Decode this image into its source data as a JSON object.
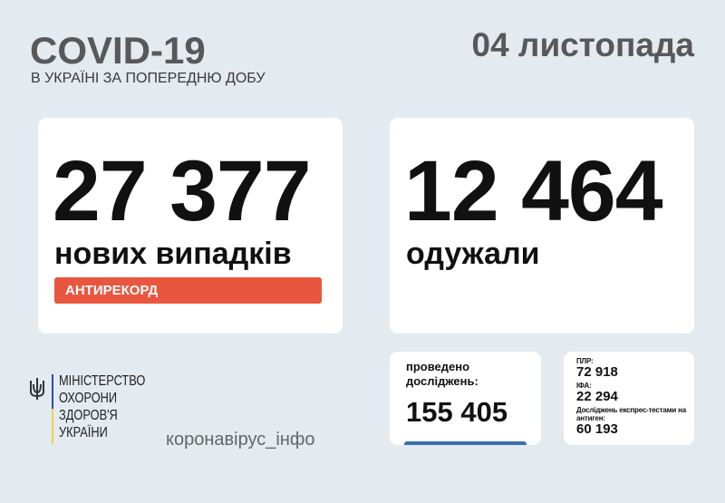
{
  "header": {
    "title": "COVID-19",
    "subtitle": "В УКРАЇНІ ЗА ПОПЕРЕДНЮ ДОБУ",
    "date": "04 листопада"
  },
  "cases": {
    "value": "27 377",
    "label": "нових випадків",
    "badge": "АНТИРЕКОРД"
  },
  "recovered": {
    "value": "12 464",
    "label": "одужали"
  },
  "tests": {
    "label_line1": "проведено",
    "label_line2": "досліджень:",
    "value": "155 405"
  },
  "breakdown": {
    "pcr_label": "ПЛР:",
    "pcr_value": "72 918",
    "ifa_label": "ІФА:",
    "ifa_value": "22 294",
    "antigen_label": "Досліджень експрес-тестами на антиген:",
    "antigen_value": "60 193"
  },
  "footer": {
    "ministry_lines": [
      "МІНІСТЕРСТВО",
      "ОХОРОНИ",
      "ЗДОРОВ'Я",
      "УКРАЇНИ"
    ],
    "hashtag": "коронавірус_інфо"
  },
  "colors": {
    "background": "#e3eaf0",
    "badge": "#e9563f",
    "accent_blue": "#3b6fb0",
    "flag_blue": "#2f4ea0",
    "flag_yellow": "#f5d04a"
  }
}
